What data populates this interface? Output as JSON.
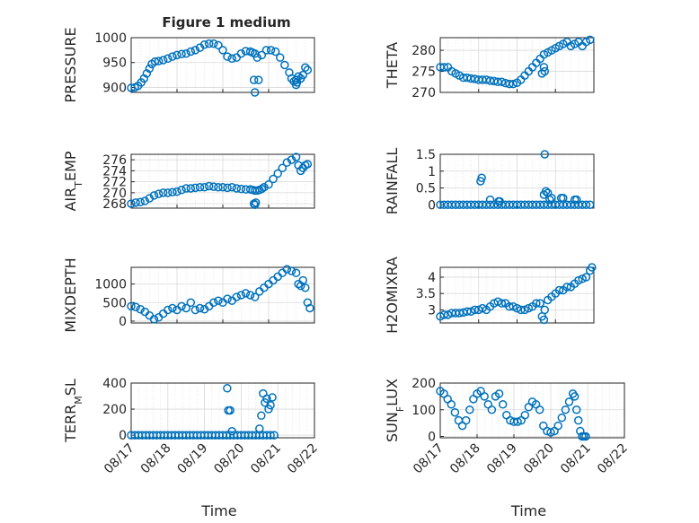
{
  "figure_title": "Figure 1 medium",
  "colors": {
    "marker": "#0072BD",
    "axes": "#262626",
    "grid": "#d9d9d9"
  },
  "chart_data": [
    {
      "type": "scatter",
      "ylabel": "PRESSURE",
      "title": "Figure 1 medium",
      "x_range": [
        "08/17",
        "08/21"
      ],
      "xlim": [
        0,
        4
      ],
      "ylim": [
        890,
        1000
      ],
      "y_ticks": [
        "900",
        "950",
        "1000"
      ],
      "grid": true,
      "x": [
        0.0,
        0.08,
        0.15,
        0.22,
        0.28,
        0.34,
        0.4,
        0.45,
        0.52,
        0.6,
        0.7,
        0.8,
        0.9,
        1.0,
        1.1,
        1.2,
        1.3,
        1.4,
        1.5,
        1.6,
        1.7,
        1.8,
        1.9,
        2.0,
        2.1,
        2.2,
        2.3,
        2.4,
        2.5,
        2.6,
        2.65,
        2.7,
        2.75,
        2.85,
        2.95,
        3.05,
        3.15,
        3.25,
        3.35,
        3.45,
        3.5,
        3.55,
        3.6,
        3.65,
        3.7,
        3.75,
        3.8,
        3.85,
        2.68,
        2.78,
        2.7,
        3.6,
        3.62
      ],
      "values": [
        899,
        900,
        903,
        910,
        918,
        928,
        938,
        947,
        952,
        953,
        955,
        958,
        962,
        965,
        967,
        968,
        972,
        975,
        980,
        986,
        988,
        988,
        985,
        975,
        962,
        958,
        960,
        968,
        973,
        972,
        970,
        968,
        960,
        965,
        975,
        975,
        972,
        960,
        945,
        930,
        918,
        912,
        915,
        922,
        918,
        925,
        940,
        935,
        915,
        915,
        890,
        905,
        910
      ]
    },
    {
      "type": "scatter",
      "ylabel": "THETA",
      "x_range": [
        "08/17",
        "08/21"
      ],
      "xlim": [
        0,
        4
      ],
      "ylim": [
        270,
        283
      ],
      "y_ticks": [
        "270",
        "275",
        "280"
      ],
      "grid": true,
      "x": [
        0.0,
        0.1,
        0.2,
        0.3,
        0.4,
        0.5,
        0.6,
        0.7,
        0.8,
        0.9,
        1.0,
        1.1,
        1.2,
        1.3,
        1.4,
        1.5,
        1.6,
        1.7,
        1.8,
        1.9,
        2.0,
        2.1,
        2.2,
        2.3,
        2.4,
        2.5,
        2.6,
        2.7,
        2.8,
        2.9,
        3.0,
        3.1,
        3.2,
        3.3,
        3.4,
        3.5,
        3.6,
        3.7,
        3.8,
        3.9,
        2.65,
        2.7,
        2.72
      ],
      "values": [
        276,
        276,
        276,
        275,
        274.5,
        274,
        273.5,
        273.5,
        273.3,
        273.2,
        273,
        273,
        273,
        272.8,
        272.7,
        272.5,
        272.5,
        272.2,
        272,
        272,
        272.3,
        273,
        274,
        275,
        276,
        277,
        278,
        279,
        279.5,
        280,
        280.5,
        281,
        281.5,
        282,
        281,
        281.5,
        282,
        281,
        282,
        282.5,
        274.5,
        276,
        275
      ]
    },
    {
      "type": "scatter",
      "ylabel": "AIR_TEMP",
      "x_range": [
        "08/17",
        "08/21"
      ],
      "xlim": [
        0,
        4
      ],
      "ylim": [
        267.2,
        277
      ],
      "y_ticks": [
        "268",
        "270",
        "272",
        "274",
        "276"
      ],
      "grid": true,
      "x": [
        0.0,
        0.1,
        0.2,
        0.3,
        0.4,
        0.5,
        0.6,
        0.7,
        0.8,
        0.9,
        1.0,
        1.1,
        1.2,
        1.3,
        1.4,
        1.5,
        1.6,
        1.7,
        1.8,
        1.9,
        2.0,
        2.1,
        2.2,
        2.3,
        2.4,
        2.5,
        2.6,
        2.65,
        2.7,
        2.75,
        2.8,
        2.85,
        2.9,
        3.0,
        3.1,
        3.2,
        3.3,
        3.4,
        3.5,
        3.6,
        3.65,
        3.7,
        3.75,
        3.8,
        3.85,
        2.68,
        2.7,
        2.72
      ],
      "values": [
        268,
        268.2,
        268.3,
        268.5,
        269,
        269.5,
        269.8,
        270,
        270,
        270.1,
        270.2,
        270.5,
        270.8,
        270.8,
        270.9,
        271,
        271,
        271.2,
        271.1,
        271,
        271,
        270.9,
        271,
        270.8,
        270.7,
        270.6,
        270.6,
        270.5,
        270.4,
        270.4,
        270.5,
        270.7,
        271,
        271.5,
        272.5,
        273.5,
        274.5,
        275.5,
        276,
        276.5,
        275,
        274,
        274.5,
        275,
        275.2,
        268,
        267.8,
        268.2
      ]
    },
    {
      "type": "scatter",
      "ylabel": "RAINFALL",
      "x_range": [
        "08/17",
        "08/21"
      ],
      "xlim": [
        0,
        4
      ],
      "ylim": [
        -0.1,
        1.5
      ],
      "y_ticks": [
        "0",
        "0.5",
        "1",
        "1.5"
      ],
      "grid": true,
      "x": [
        0.0,
        0.1,
        0.2,
        0.3,
        0.4,
        0.5,
        0.6,
        0.7,
        0.8,
        0.9,
        1.0,
        1.1,
        1.2,
        1.3,
        1.4,
        1.5,
        1.6,
        1.7,
        1.8,
        1.9,
        2.0,
        2.1,
        2.2,
        2.3,
        2.4,
        2.5,
        2.6,
        2.7,
        2.8,
        2.9,
        3.0,
        3.1,
        3.2,
        3.3,
        3.4,
        3.5,
        3.6,
        3.7,
        3.8,
        3.9,
        1.05,
        1.08,
        1.3,
        1.52,
        1.55,
        2.7,
        2.75,
        2.8,
        2.85,
        2.9,
        2.72,
        3.15,
        3.2,
        3.5,
        3.55
      ],
      "values": [
        0,
        0,
        0,
        0,
        0,
        0,
        0,
        0,
        0,
        0,
        0,
        0,
        0,
        0,
        0,
        0,
        0,
        0,
        0,
        0,
        0,
        0,
        0,
        0,
        0,
        0,
        0,
        0,
        0,
        0,
        0,
        0,
        0,
        0,
        0,
        0,
        0,
        0,
        0,
        0,
        0.7,
        0.8,
        0.15,
        0.1,
        0.1,
        0.3,
        0.4,
        0.35,
        0.15,
        0.2,
        1.5,
        0.2,
        0.2,
        0.15,
        0.15
      ]
    },
    {
      "type": "scatter",
      "ylabel": "MIXDEPTH",
      "x_range": [
        "08/17",
        "08/21"
      ],
      "xlim": [
        0,
        4
      ],
      "ylim": [
        -50,
        1450
      ],
      "y_ticks": [
        "0",
        "500",
        "1000"
      ],
      "grid": true,
      "x": [
        0.0,
        0.1,
        0.2,
        0.3,
        0.4,
        0.5,
        0.6,
        0.7,
        0.8,
        0.9,
        1.0,
        1.1,
        1.2,
        1.3,
        1.4,
        1.5,
        1.6,
        1.7,
        1.8,
        1.9,
        2.0,
        2.1,
        2.2,
        2.3,
        2.4,
        2.5,
        2.6,
        2.7,
        2.8,
        2.9,
        3.0,
        3.1,
        3.2,
        3.3,
        3.4,
        3.5,
        3.6,
        3.65,
        3.7,
        3.75,
        3.8,
        3.85,
        3.9
      ],
      "values": [
        400,
        380,
        320,
        250,
        150,
        50,
        100,
        200,
        300,
        350,
        300,
        400,
        350,
        500,
        300,
        350,
        320,
        400,
        500,
        550,
        500,
        600,
        550,
        650,
        700,
        750,
        700,
        650,
        800,
        900,
        1000,
        1100,
        1200,
        1300,
        1400,
        1350,
        1300,
        1000,
        950,
        1100,
        900,
        500,
        350
      ]
    },
    {
      "type": "scatter",
      "ylabel": "H2OMIXRA",
      "x_range": [
        "08/17",
        "08/21"
      ],
      "xlim": [
        0,
        4
      ],
      "ylim": [
        2.6,
        4.3
      ],
      "y_ticks": [
        "3",
        "3.5",
        "4"
      ],
      "grid": true,
      "x": [
        0.0,
        0.1,
        0.2,
        0.3,
        0.4,
        0.5,
        0.6,
        0.7,
        0.8,
        0.9,
        1.0,
        1.1,
        1.2,
        1.3,
        1.4,
        1.5,
        1.6,
        1.7,
        1.8,
        1.9,
        2.0,
        2.1,
        2.2,
        2.3,
        2.4,
        2.5,
        2.6,
        2.65,
        2.7,
        2.72,
        2.8,
        2.9,
        3.0,
        3.1,
        3.2,
        3.3,
        3.4,
        3.5,
        3.6,
        3.7,
        3.8,
        3.9,
        3.95
      ],
      "values": [
        2.8,
        2.85,
        2.85,
        2.9,
        2.9,
        2.9,
        2.92,
        2.95,
        2.95,
        3.0,
        3.0,
        3.05,
        3.0,
        3.1,
        3.2,
        3.25,
        3.2,
        3.2,
        3.1,
        3.1,
        3.05,
        3.0,
        3.0,
        3.05,
        3.1,
        3.2,
        3.2,
        2.8,
        2.7,
        3.0,
        3.3,
        3.4,
        3.5,
        3.6,
        3.6,
        3.7,
        3.7,
        3.8,
        3.9,
        3.95,
        4.0,
        4.2,
        4.3
      ]
    },
    {
      "type": "scatter",
      "ylabel": "TERR_MSL",
      "x_range": [
        "08/17",
        "08/22"
      ],
      "xlim": [
        0,
        5
      ],
      "ylim": [
        -20,
        400
      ],
      "x_ticks": [
        "08/17",
        "08/18",
        "08/19",
        "08/20",
        "08/21",
        "08/22"
      ],
      "y_ticks": [
        "0",
        "200",
        "400"
      ],
      "xlabel": "Time",
      "grid": true,
      "x": [
        0.0,
        0.1,
        0.2,
        0.3,
        0.4,
        0.5,
        0.6,
        0.7,
        0.8,
        0.9,
        1.0,
        1.1,
        1.2,
        1.3,
        1.4,
        1.5,
        1.6,
        1.7,
        1.8,
        1.9,
        2.0,
        2.1,
        2.2,
        2.3,
        2.4,
        2.5,
        2.6,
        2.7,
        2.8,
        2.9,
        3.0,
        3.1,
        3.2,
        3.3,
        3.4,
        3.5,
        3.6,
        3.7,
        3.8,
        3.9,
        2.62,
        2.65,
        2.7,
        2.75,
        3.5,
        3.55,
        3.6,
        3.65,
        3.7,
        3.75,
        3.8,
        3.85
      ],
      "values": [
        0,
        0,
        0,
        0,
        0,
        0,
        0,
        0,
        0,
        0,
        0,
        0,
        0,
        0,
        0,
        0,
        0,
        0,
        0,
        0,
        0,
        0,
        0,
        0,
        0,
        0,
        0,
        0,
        0,
        0,
        0,
        0,
        0,
        0,
        0,
        0,
        0,
        0,
        0,
        0,
        360,
        190,
        190,
        30,
        50,
        150,
        320,
        250,
        280,
        200,
        230,
        290
      ]
    },
    {
      "type": "scatter",
      "ylabel": "SUN_FLUX",
      "x_range": [
        "08/17",
        "08/22"
      ],
      "xlim": [
        0,
        5
      ],
      "ylim": [
        -5,
        200
      ],
      "x_ticks": [
        "08/17",
        "08/18",
        "08/19",
        "08/20",
        "08/21",
        "08/22"
      ],
      "y_ticks": [
        "0",
        "100",
        "200"
      ],
      "xlabel": "Time",
      "grid": true,
      "x": [
        0.0,
        0.1,
        0.2,
        0.3,
        0.4,
        0.5,
        0.6,
        0.7,
        0.8,
        0.9,
        1.0,
        1.1,
        1.2,
        1.3,
        1.4,
        1.5,
        1.6,
        1.7,
        1.8,
        1.9,
        2.0,
        2.1,
        2.2,
        2.3,
        2.4,
        2.5,
        2.6,
        2.7,
        2.8,
        2.9,
        3.0,
        3.1,
        3.2,
        3.3,
        3.4,
        3.5,
        3.6,
        3.65,
        3.7,
        3.75,
        3.8,
        3.85,
        3.9,
        3.95
      ],
      "values": [
        170,
        160,
        140,
        120,
        90,
        60,
        40,
        60,
        100,
        140,
        160,
        170,
        150,
        120,
        100,
        150,
        160,
        120,
        80,
        60,
        55,
        55,
        60,
        80,
        110,
        130,
        120,
        100,
        40,
        20,
        15,
        20,
        40,
        70,
        100,
        130,
        160,
        150,
        100,
        60,
        20,
        0,
        0,
        0
      ]
    }
  ]
}
